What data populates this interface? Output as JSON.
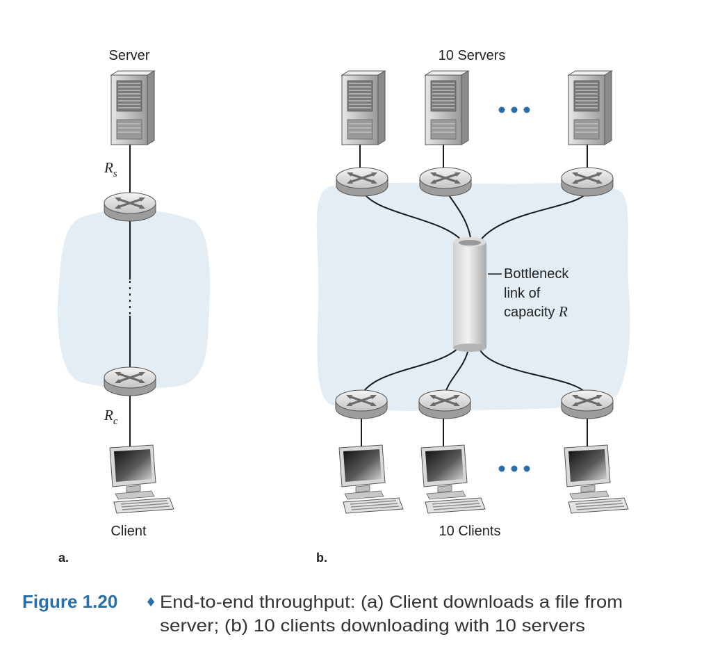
{
  "panel_a": {
    "label": "a.",
    "server_label": "Server",
    "client_label": "Client",
    "rate_server": {
      "letter": "R",
      "sub": "s"
    },
    "rate_client": {
      "letter": "R",
      "sub": "c"
    }
  },
  "panel_b": {
    "label": "b.",
    "servers_label": "10 Servers",
    "clients_label": "10 Clients",
    "bottleneck": {
      "line1": "Bottleneck",
      "line2": "link of",
      "line3_prefix": "capacity ",
      "line3_var": "R"
    }
  },
  "caption": {
    "number": "Figure 1.20",
    "bullet": "♦",
    "line1": "End-to-end throughput: (a) Client downloads a file from",
    "line2": "server; (b) 10 clients downloading with 10 servers"
  },
  "colors": {
    "cloud": "#e3edf3",
    "caption_accent": "#2a6fa8",
    "ellipsis_dots": "#2a6fa8"
  }
}
